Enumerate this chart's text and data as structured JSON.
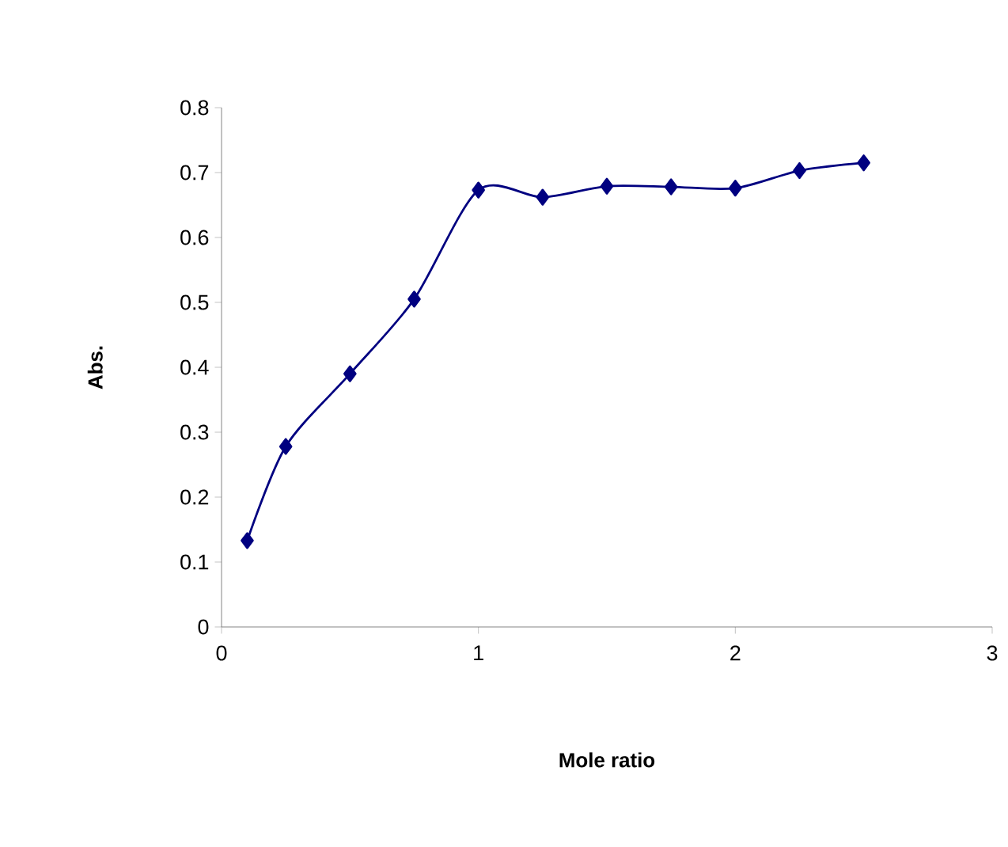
{
  "chart_data": {
    "type": "line",
    "xlabel": "Mole ratio",
    "ylabel": "Abs.",
    "x": [
      0.1,
      0.25,
      0.5,
      0.75,
      1,
      1.25,
      1.5,
      1.75,
      2,
      2.25,
      2.5
    ],
    "series": [
      {
        "color": "#000080",
        "values": [
          0.133,
          0.278,
          0.39,
          0.505,
          0.673,
          0.662,
          0.679,
          0.678,
          0.676,
          0.703,
          0.715
        ]
      }
    ],
    "xlim": [
      0,
      3
    ],
    "ylim": [
      0,
      0.8
    ],
    "xticks": [
      0,
      1,
      2,
      3
    ],
    "yticks": [
      0,
      0.1,
      0.2,
      0.3,
      0.4,
      0.5,
      0.6,
      0.7,
      0.8
    ],
    "marker": "diamond",
    "line_style": "solid",
    "grid": false
  }
}
